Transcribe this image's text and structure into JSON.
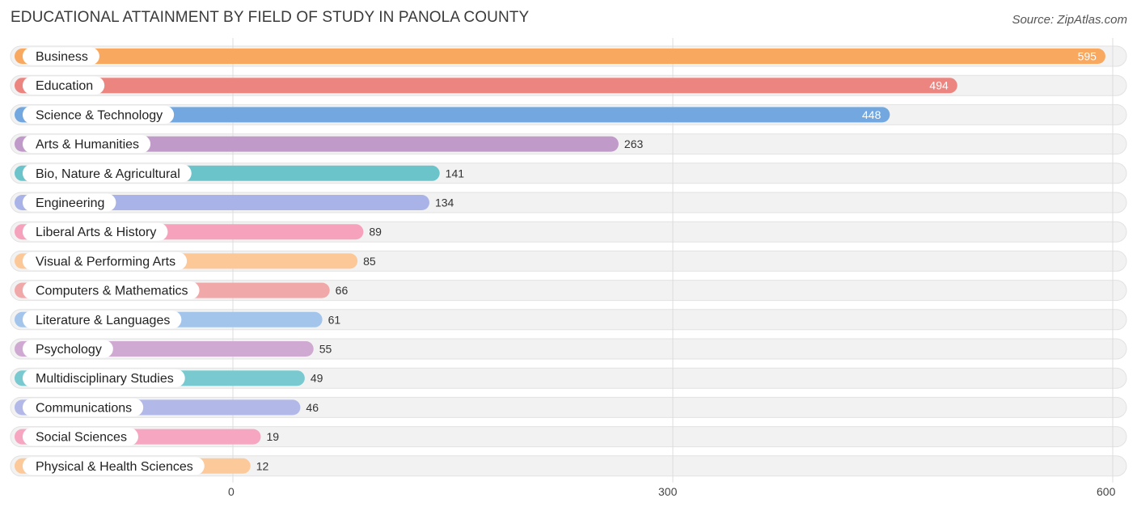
{
  "header": {
    "title": "EDUCATIONAL ATTAINMENT BY FIELD OF STUDY IN PANOLA COUNTY",
    "source": "Source: ZipAtlas.com"
  },
  "chart_data": {
    "type": "bar",
    "orientation": "horizontal",
    "title": "EDUCATIONAL ATTAINMENT BY FIELD OF STUDY IN PANOLA COUNTY",
    "xlim": [
      0,
      600
    ],
    "xticks": [
      0,
      300,
      600
    ],
    "xtick_labels": [
      "0",
      "300",
      "600"
    ],
    "categories": [
      "Business",
      "Education",
      "Science & Technology",
      "Arts & Humanities",
      "Bio, Nature & Agricultural",
      "Engineering",
      "Liberal Arts & History",
      "Visual & Performing Arts",
      "Computers & Mathematics",
      "Literature & Languages",
      "Psychology",
      "Multidisciplinary Studies",
      "Communications",
      "Social Sciences",
      "Physical & Health Sciences"
    ],
    "values": [
      595,
      494,
      448,
      263,
      141,
      134,
      89,
      85,
      66,
      61,
      55,
      49,
      46,
      19,
      12
    ],
    "value_labels": [
      "595",
      "494",
      "448",
      "263",
      "141",
      "134",
      "89",
      "85",
      "66",
      "61",
      "55",
      "49",
      "46",
      "19",
      "12"
    ],
    "colors": [
      "#f9a85f",
      "#ec8580",
      "#72a8df",
      "#c09ac8",
      "#6cc4cb",
      "#a9b3e8",
      "#f7a2bc",
      "#fcc898",
      "#f0a9a8",
      "#a3c5ec",
      "#cfa9d1",
      "#79c9d0",
      "#b2b9e9",
      "#f7a6c2",
      "#fcc99a"
    ],
    "grid": true
  }
}
